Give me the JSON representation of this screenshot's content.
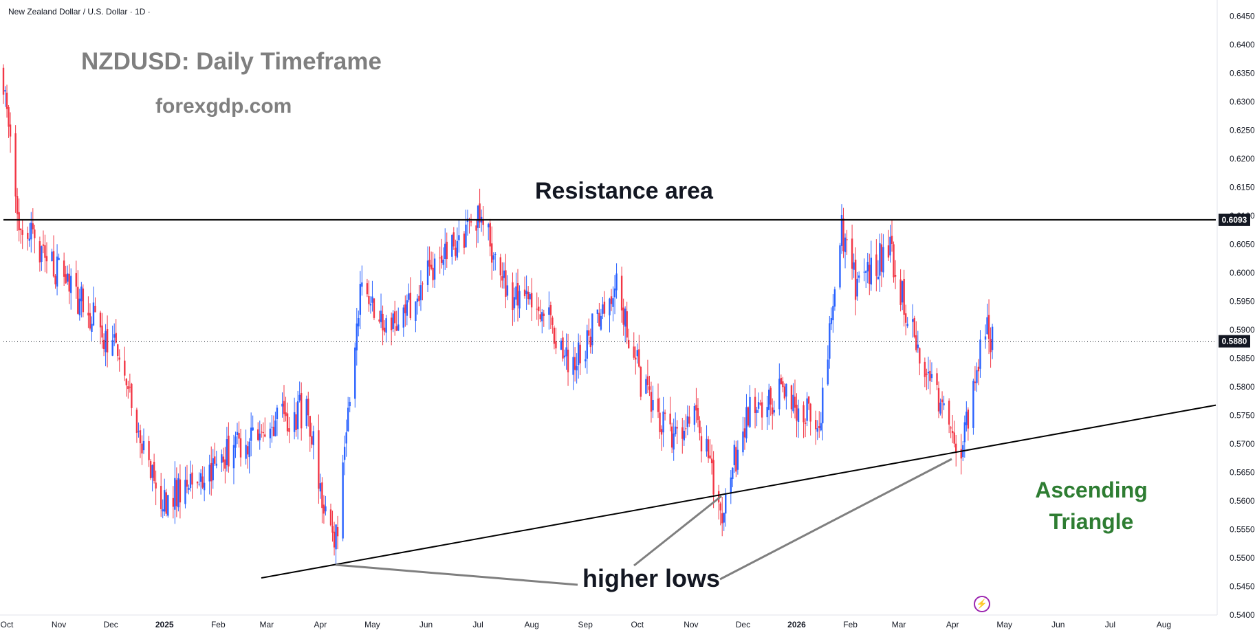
{
  "header": {
    "symbol_label": "New Zealand Dollar / U.S. Dollar · 1D ·"
  },
  "annotations": {
    "title": "NZDUSD: Daily Timeframe",
    "website": "forexgdp.com",
    "resistance_label": "Resistance area",
    "higher_lows_label": "higher lows",
    "pattern_line1": "Ascending",
    "pattern_line2": "Triangle"
  },
  "colors": {
    "up_candle": "#2962ff",
    "down_candle": "#f23645",
    "pattern_text": "#2e7d32",
    "annotation_gray": "#7f7f7f",
    "price_badge": "#131722"
  },
  "icons": {
    "lightning": "lightning-icon"
  },
  "chart_data": {
    "type": "candlestick",
    "title": "NZDUSD: Daily Timeframe",
    "ylim": [
      0.54,
      0.647
    ],
    "y_ticks": [
      "0.6450",
      "0.6400",
      "0.6350",
      "0.6300",
      "0.6250",
      "0.6200",
      "0.6150",
      "0.6100",
      "0.6050",
      "0.6000",
      "0.5950",
      "0.5900",
      "0.5850",
      "0.5800",
      "0.5750",
      "0.5700",
      "0.5650",
      "0.5600",
      "0.5550",
      "0.5500",
      "0.5450",
      "0.5400"
    ],
    "x_ticks": [
      "Oct",
      "Nov",
      "Dec",
      "2025",
      "Feb",
      "Mar",
      "Apr",
      "May",
      "Jun",
      "Jul",
      "Aug",
      "Sep",
      "Oct",
      "Nov",
      "Dec",
      "2026",
      "Feb",
      "Mar",
      "Apr",
      "May",
      "Jun",
      "Jul",
      "Aug"
    ],
    "resistance_level": "0.6093",
    "last_price": "0.5880",
    "anchors": [
      {
        "date": "Sep 30",
        "price": 0.636
      },
      {
        "date": "Oct 10",
        "price": 0.609
      },
      {
        "date": "Nov 15",
        "price": 0.595
      },
      {
        "date": "Dec 05",
        "price": 0.586
      },
      {
        "date": "Dec 31",
        "price": 0.56
      },
      {
        "date": "Jan 20",
        "price": 0.564
      },
      {
        "date": "Feb 15",
        "price": 0.57
      },
      {
        "date": "Mar 05",
        "price": 0.574
      },
      {
        "date": "Mar 25",
        "price": 0.576
      },
      {
        "date": "Apr 10",
        "price": 0.55
      },
      {
        "date": "Apr 25",
        "price": 0.596
      },
      {
        "date": "May 15",
        "price": 0.59
      },
      {
        "date": "Jun 10",
        "price": 0.603
      },
      {
        "date": "Jul 03",
        "price": 0.61
      },
      {
        "date": "Jul 20",
        "price": 0.596
      },
      {
        "date": "Aug 10",
        "price": 0.593
      },
      {
        "date": "Aug 25",
        "price": 0.583
      },
      {
        "date": "Sep 20",
        "price": 0.598
      },
      {
        "date": "Oct 05",
        "price": 0.58
      },
      {
        "date": "Oct 20",
        "price": 0.572
      },
      {
        "date": "Nov 05",
        "price": 0.574
      },
      {
        "date": "Nov 20",
        "price": 0.559
      },
      {
        "date": "Dec 05",
        "price": 0.576
      },
      {
        "date": "Dec 25",
        "price": 0.579
      },
      {
        "date": "Jan 15",
        "price": 0.573
      },
      {
        "date": "Jan 28",
        "price": 0.608
      },
      {
        "date": "Feb 05",
        "price": 0.598
      },
      {
        "date": "Feb 25",
        "price": 0.604
      },
      {
        "date": "Mar 10",
        "price": 0.589
      },
      {
        "date": "Mar 20",
        "price": 0.58
      },
      {
        "date": "Apr 08",
        "price": 0.569
      },
      {
        "date": "Apr 20",
        "price": 0.591
      },
      {
        "date": "Apr 25",
        "price": 0.588
      }
    ],
    "resistance_line": {
      "price": 0.6093,
      "from": "Sep 30",
      "to": "Aug 31"
    },
    "support_trendline": {
      "from": {
        "date": "Mar 01",
        "price": 0.5465
      },
      "to": {
        "date": "Aug 31",
        "price": 0.5768
      }
    }
  }
}
